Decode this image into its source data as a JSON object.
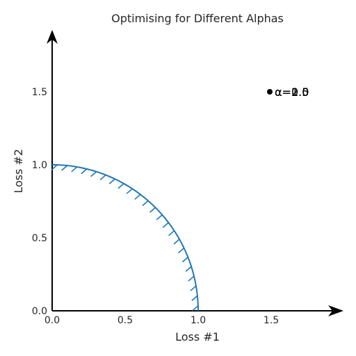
{
  "chart_data": {
    "type": "line",
    "title": "Optimising for Different Alphas",
    "xlabel": "Loss #1",
    "ylabel": "Loss #2",
    "xlim": [
      0,
      2.0
    ],
    "ylim": [
      0,
      2.0
    ],
    "x_ticks": [
      "0.0",
      "0.5",
      "1.0",
      "1.5"
    ],
    "y_ticks": [
      "0.0",
      "0.5",
      "1.0",
      "1.5"
    ],
    "grid": false,
    "axes_style": "arrowed-origin-axes",
    "series": [
      {
        "kind": "pareto-front-arc",
        "color": "#1f77b4",
        "hatched_side": "inner",
        "center": [
          0,
          0
        ],
        "radius": 1.0,
        "angle_range_deg": [
          0,
          90
        ]
      }
    ],
    "annotation": {
      "point": [
        1.5,
        1.5
      ],
      "marker_color": "#000000",
      "labels": [
        "α=0.5",
        "α=1.0",
        "α=2.0"
      ]
    }
  }
}
